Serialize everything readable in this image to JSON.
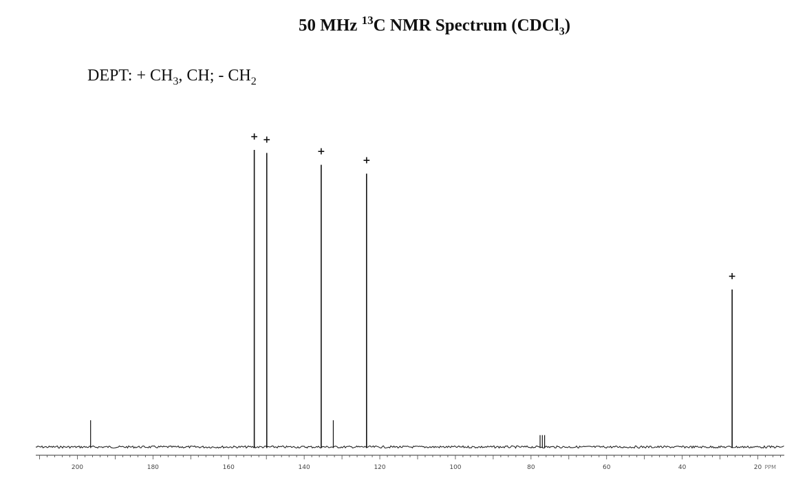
{
  "header": {
    "title_pre": "50 MHz ",
    "title_sup": "13",
    "title_mid": "C NMR Spectrum (CDCl",
    "title_sub": "3",
    "title_post": ")",
    "dept_pre": "DEPT: + CH",
    "dept_sub1": "3",
    "dept_mid": ", CH; - CH",
    "dept_sub2": "2"
  },
  "chart_data": {
    "type": "line",
    "title": "50 MHz 13C NMR Spectrum (CDCl3)",
    "subtitle": "DEPT: + CH3, CH; - CH2",
    "xlabel": "",
    "ylabel": "",
    "x_unit_label": "PPM",
    "xlim": [
      211,
      13
    ],
    "x_reversed": true,
    "grid": false,
    "ticks": [
      200,
      180,
      160,
      140,
      120,
      100,
      80,
      60,
      40,
      20
    ],
    "tick_labels": [
      "200",
      "180",
      "160",
      "140",
      "120",
      "100",
      "80",
      "60",
      "40",
      "20"
    ],
    "peaks": [
      {
        "ppm": 196.5,
        "rel_height": 0.09,
        "dept": ""
      },
      {
        "ppm": 153.2,
        "rel_height": 1.0,
        "dept": "+"
      },
      {
        "ppm": 149.9,
        "rel_height": 0.99,
        "dept": "+"
      },
      {
        "ppm": 135.5,
        "rel_height": 0.95,
        "dept": "+"
      },
      {
        "ppm": 132.3,
        "rel_height": 0.09,
        "dept": ""
      },
      {
        "ppm": 123.5,
        "rel_height": 0.92,
        "dept": "+"
      },
      {
        "ppm": 77.6,
        "rel_height": 0.04,
        "dept": ""
      },
      {
        "ppm": 77.0,
        "rel_height": 0.04,
        "dept": ""
      },
      {
        "ppm": 76.4,
        "rel_height": 0.04,
        "dept": ""
      },
      {
        "ppm": 26.8,
        "rel_height": 0.53,
        "dept": "+"
      }
    ]
  }
}
